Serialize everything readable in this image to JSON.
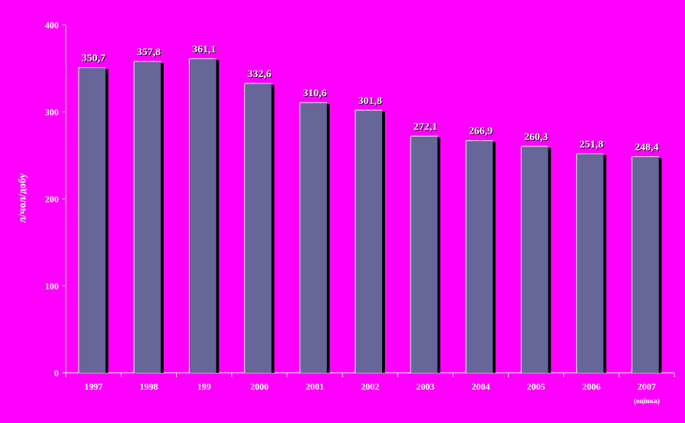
{
  "chart_data": {
    "type": "bar",
    "categories": [
      "1997",
      "1998",
      "199",
      "2000",
      "2001",
      "2002",
      "2003",
      "2004",
      "2005",
      "2006",
      "2007"
    ],
    "category_note": "(оцінка)",
    "values": [
      350.7,
      357.8,
      361.1,
      332.6,
      310.6,
      301.8,
      272.1,
      266.9,
      260.3,
      251.8,
      248.4
    ],
    "value_labels": [
      "350,7",
      "357,8",
      "361,1",
      "332,6",
      "310,6",
      "301,8",
      "272,1",
      "266,9",
      "260,3",
      "251,8",
      "248,4"
    ],
    "title": "",
    "xlabel": "",
    "ylabel": "л/чол/добу",
    "ylim": [
      0,
      400
    ],
    "yticks": [
      0,
      100,
      200,
      300,
      400
    ],
    "grid": false,
    "legend": "none"
  },
  "colors": {
    "background": "#ff00ff",
    "bar": "#666699",
    "bar_shadow": "#000000",
    "bar_highlight": "#ffffff",
    "text": "#ffffff",
    "value_label": "#ffffff",
    "value_label_shadow": "#000000"
  }
}
